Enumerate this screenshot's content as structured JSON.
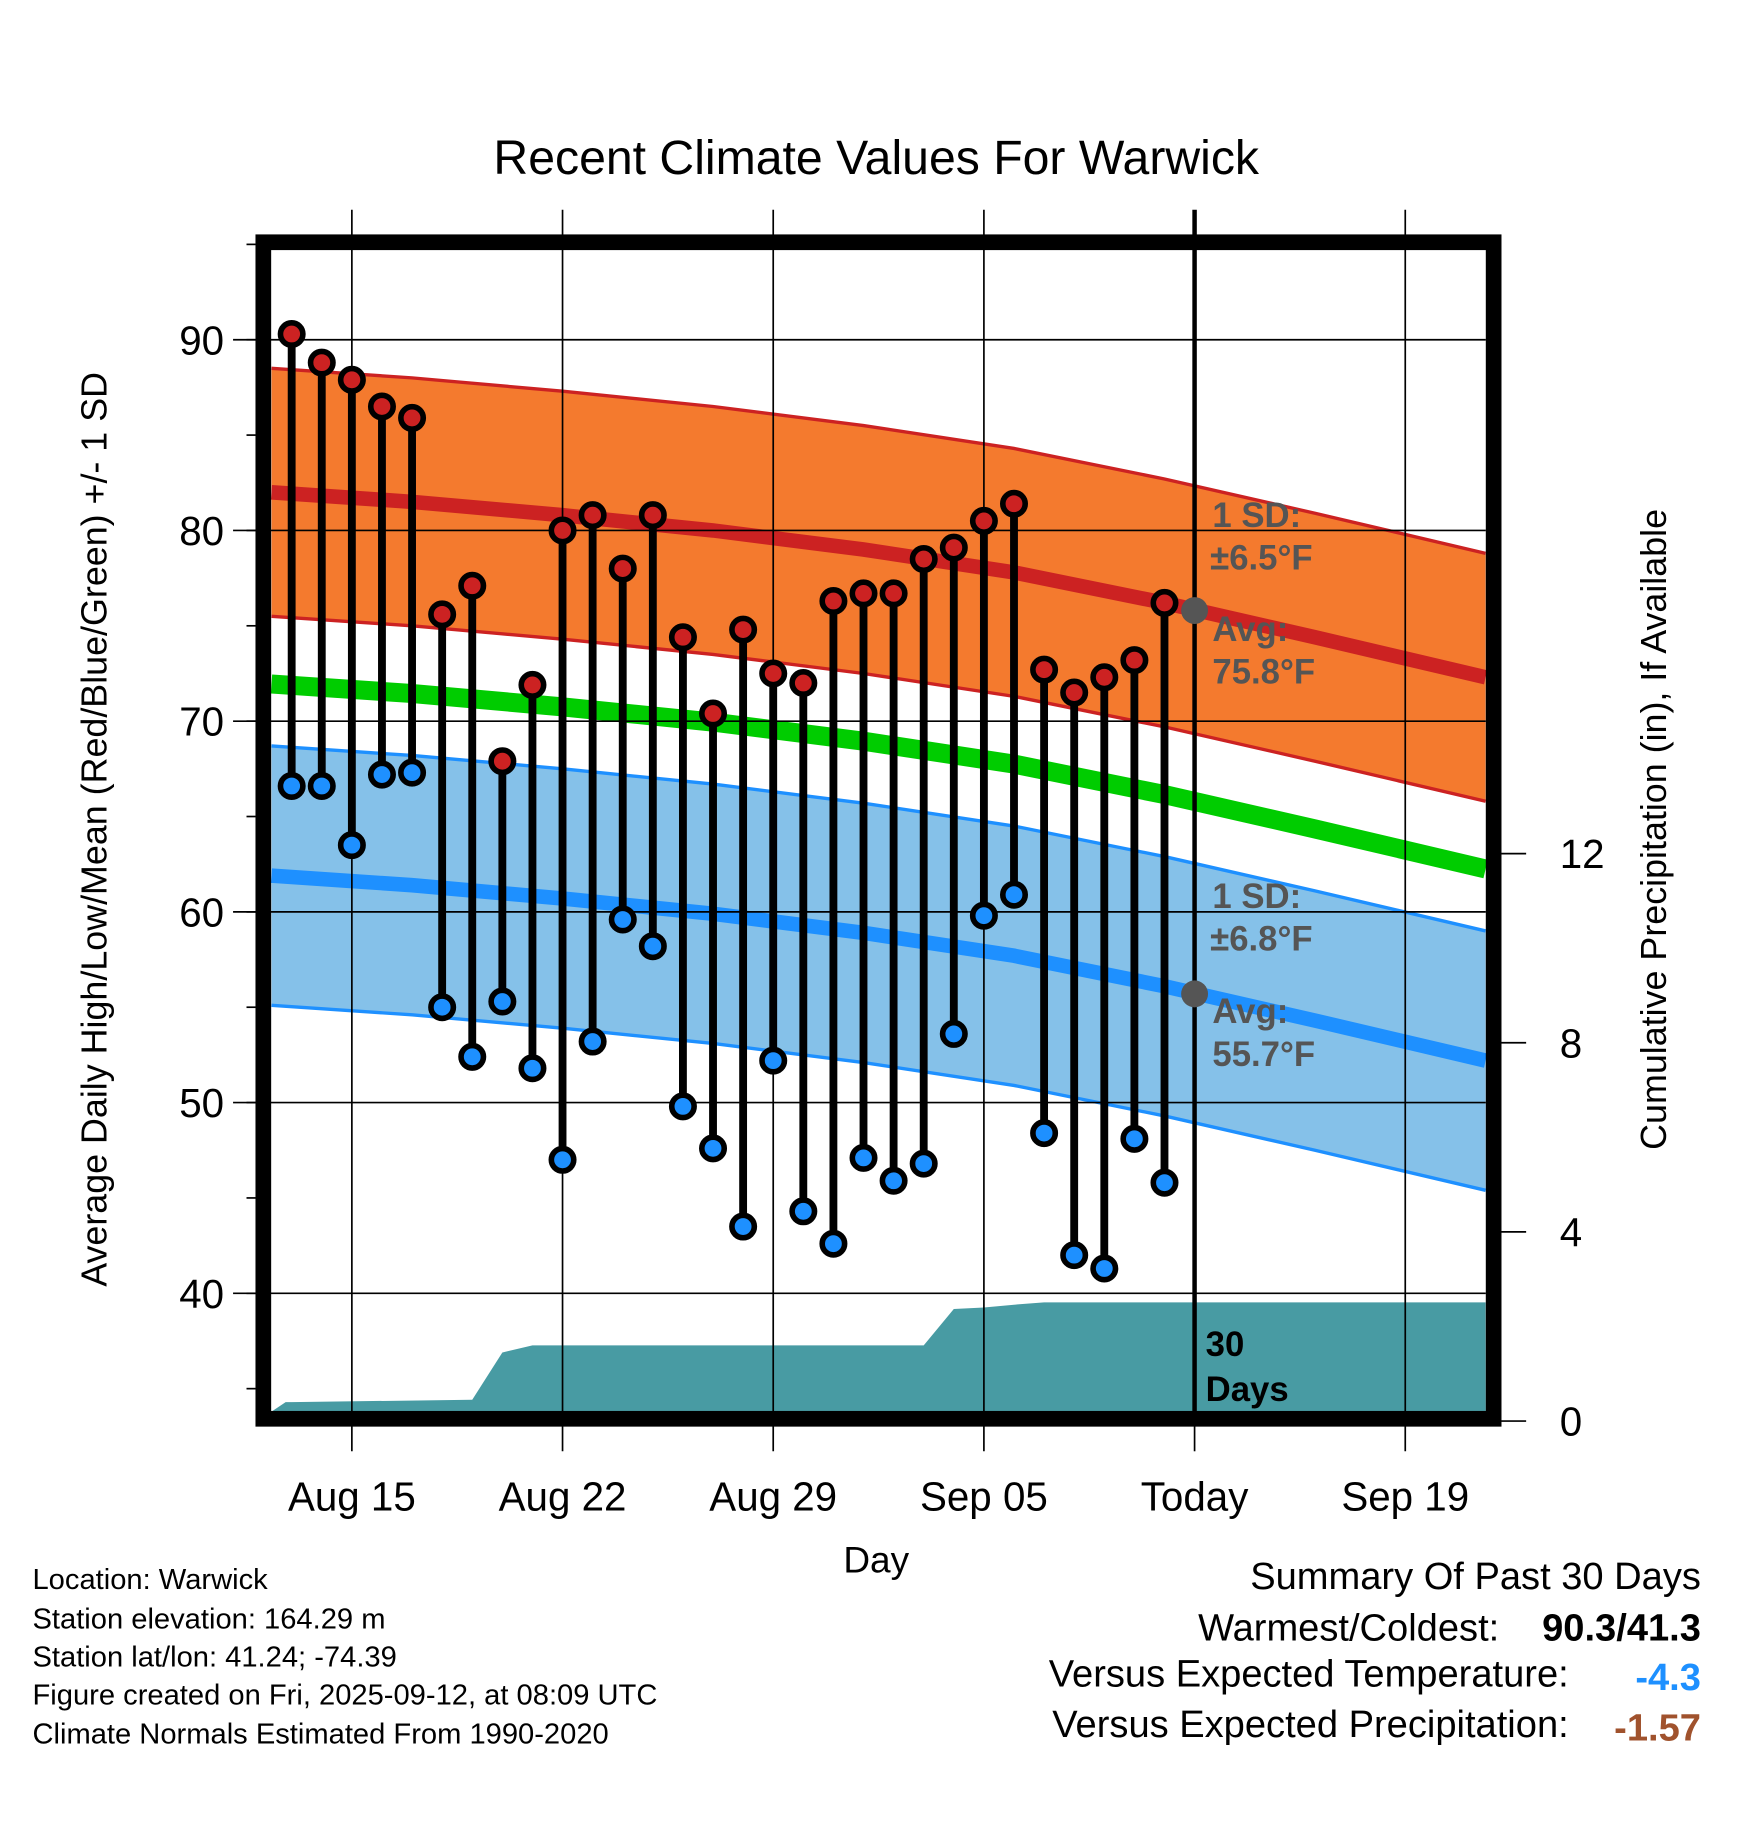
{
  "chart_data": {
    "type": "line",
    "title": "Recent Climate Values For Warwick",
    "xlabel": "Day",
    "ylabel": "Average Daily High/Low/Mean (Red/Blue/Green) +/- 1 SD",
    "y2label": "Cumulative Precipitation (in), If Available",
    "ylim": [
      33.8,
      94.8
    ],
    "y2lim": [
      0,
      14.4
    ],
    "x_origin": "Aug 13",
    "xlim_days": [
      -0.67,
      39.67
    ],
    "x_ticks": [
      {
        "day": 2,
        "label": "Aug 15"
      },
      {
        "day": 9,
        "label": "Aug 22"
      },
      {
        "day": 16,
        "label": "Aug 29"
      },
      {
        "day": 23,
        "label": "Sep 05"
      },
      {
        "day": 30,
        "label": "Today"
      },
      {
        "day": 37,
        "label": "Sep 19"
      }
    ],
    "y_ticks": [
      "40",
      "50",
      "60",
      "70",
      "80",
      "90"
    ],
    "y2_ticks": [
      "0",
      "4",
      "8",
      "12"
    ],
    "grid": true,
    "daily": {
      "dates": [
        "Aug 13",
        "Aug 14",
        "Aug 15",
        "Aug 16",
        "Aug 17",
        "Aug 18",
        "Aug 19",
        "Aug 20",
        "Aug 21",
        "Aug 22",
        "Aug 23",
        "Aug 24",
        "Aug 25",
        "Aug 26",
        "Aug 27",
        "Aug 28",
        "Aug 29",
        "Aug 30",
        "Aug 31",
        "Sep 01",
        "Sep 02",
        "Sep 03",
        "Sep 04",
        "Sep 05",
        "Sep 06",
        "Sep 07",
        "Sep 08",
        "Sep 09",
        "Sep 10",
        "Sep 11"
      ],
      "high": [
        90.3,
        88.8,
        87.9,
        86.5,
        85.9,
        75.6,
        77.1,
        67.9,
        71.9,
        80.0,
        80.8,
        78.0,
        80.8,
        74.4,
        70.4,
        74.8,
        72.5,
        72.0,
        76.3,
        76.7,
        76.7,
        78.5,
        79.1,
        80.5,
        81.4,
        72.7,
        71.5,
        72.3,
        73.2,
        76.2
      ],
      "low": [
        66.6,
        66.6,
        63.5,
        67.2,
        67.3,
        55.0,
        52.4,
        55.3,
        51.8,
        47.0,
        53.2,
        59.6,
        58.2,
        49.8,
        47.6,
        43.5,
        52.2,
        44.3,
        42.6,
        47.1,
        45.9,
        46.8,
        53.6,
        59.8,
        60.9,
        48.4,
        42.0,
        41.3,
        48.1,
        45.8
      ]
    },
    "normals": {
      "days": [
        -0.67,
        4,
        9,
        14,
        19,
        24,
        29,
        34,
        39.67
      ],
      "high_avg": [
        82.0,
        81.5,
        80.8,
        80.0,
        79.0,
        77.8,
        76.2,
        74.4,
        72.3
      ],
      "low_avg": [
        61.9,
        61.4,
        60.7,
        59.9,
        58.9,
        57.7,
        56.1,
        54.3,
        52.2
      ],
      "mean_avg": [
        71.95,
        71.45,
        70.75,
        69.95,
        68.95,
        67.75,
        66.15,
        64.35,
        62.25
      ],
      "high_sd": 6.5,
      "low_sd": 6.8
    },
    "precip_cumulative": {
      "days": [
        -0.67,
        -0.2,
        0,
        6,
        7,
        8,
        21,
        22,
        23,
        24,
        25,
        39.67
      ],
      "values": [
        0.2,
        0.4,
        0.4,
        0.45,
        1.45,
        1.6,
        1.6,
        2.37,
        2.4,
        2.46,
        2.51,
        2.51
      ]
    },
    "annotations": {
      "high_sd": [
        "1 SD:",
        "±6.5°F"
      ],
      "high_avg": [
        "Avg:",
        "75.8°F"
      ],
      "low_sd": [
        "1 SD:",
        "±6.8°F"
      ],
      "low_avg": [
        "Avg:",
        "55.7°F"
      ],
      "precip_period": [
        "30",
        "Days"
      ],
      "today_high_avg": 75.8,
      "today_low_avg": 55.7
    },
    "colors": {
      "high_band": "#F47A2E",
      "high_line": "#CC2222",
      "low_band": "#85C1E9",
      "low_line": "#1E90FF",
      "mean_line": "#00CC00",
      "precip": "#489BA3",
      "high_dot": "#CC2222",
      "low_dot": "#1E90FF",
      "annotation": "#555555"
    }
  },
  "footer": {
    "lines": [
      "Location: Warwick",
      "Station elevation: 164.29 m",
      "Station lat/lon: 41.24; -74.39",
      "Figure created on Fri, 2025-09-12, at 08:09 UTC",
      "Climate Normals Estimated From 1990-2020"
    ]
  },
  "summary": {
    "title": "Summary Of Past 30 Days",
    "warmest_coldest_label": "Warmest/Coldest:",
    "warmest_coldest_value": "90.3/41.3",
    "temp_label": "Versus Expected Temperature:",
    "temp_value": "-4.3",
    "temp_color": "#1E90FF",
    "precip_label": "Versus Expected Precipitation:",
    "precip_value": "-1.57",
    "precip_color": "#A0522D"
  }
}
